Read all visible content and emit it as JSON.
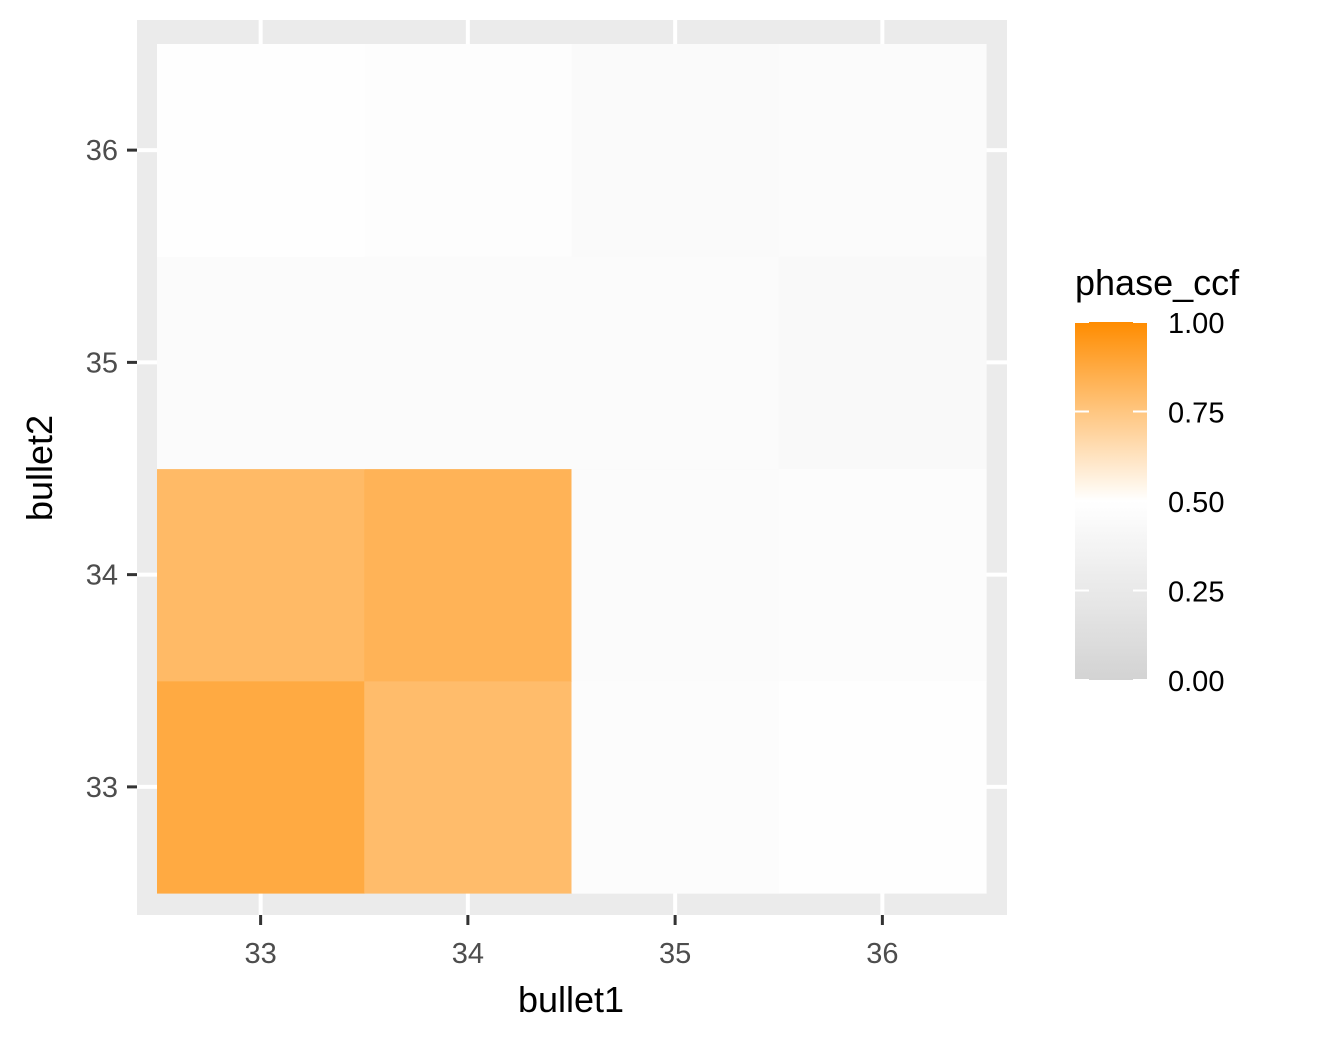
{
  "chart_data": {
    "type": "heatmap",
    "title": "",
    "xlabel": "bullet1",
    "ylabel": "bullet2",
    "x_categories": [
      "33",
      "34",
      "35",
      "36"
    ],
    "y_categories": [
      "33",
      "34",
      "35",
      "36"
    ],
    "grid": true,
    "cells": [
      {
        "x": "33",
        "y": "33",
        "value": 0.87
      },
      {
        "x": "34",
        "y": "33",
        "value": 0.79
      },
      {
        "x": "35",
        "y": "33",
        "value": 0.47
      },
      {
        "x": "36",
        "y": "33",
        "value": 0.49
      },
      {
        "x": "33",
        "y": "34",
        "value": 0.8
      },
      {
        "x": "34",
        "y": "34",
        "value": 0.83
      },
      {
        "x": "35",
        "y": "34",
        "value": 0.46
      },
      {
        "x": "36",
        "y": "34",
        "value": 0.47
      },
      {
        "x": "33",
        "y": "35",
        "value": 0.46
      },
      {
        "x": "34",
        "y": "35",
        "value": 0.46
      },
      {
        "x": "35",
        "y": "35",
        "value": 0.46
      },
      {
        "x": "36",
        "y": "35",
        "value": 0.43
      },
      {
        "x": "33",
        "y": "36",
        "value": 0.49
      },
      {
        "x": "34",
        "y": "36",
        "value": 0.48
      },
      {
        "x": "35",
        "y": "36",
        "value": 0.44
      },
      {
        "x": "36",
        "y": "36",
        "value": 0.45
      }
    ],
    "legend": {
      "title": "phase_ccf",
      "position": "right",
      "breaks": [
        "1.00",
        "0.75",
        "0.50",
        "0.25",
        "0.00"
      ],
      "limits": [
        0,
        1
      ],
      "low_color": "#d3d3d3",
      "mid_color": "#ffffff",
      "high_color": "#ff8c00",
      "midpoint": 0.5
    },
    "colors": {
      "panel_background": "#ebebeb",
      "grid_line": "#ffffff",
      "tick_text": "#4d4d4d",
      "tick_mark": "#333333"
    }
  }
}
